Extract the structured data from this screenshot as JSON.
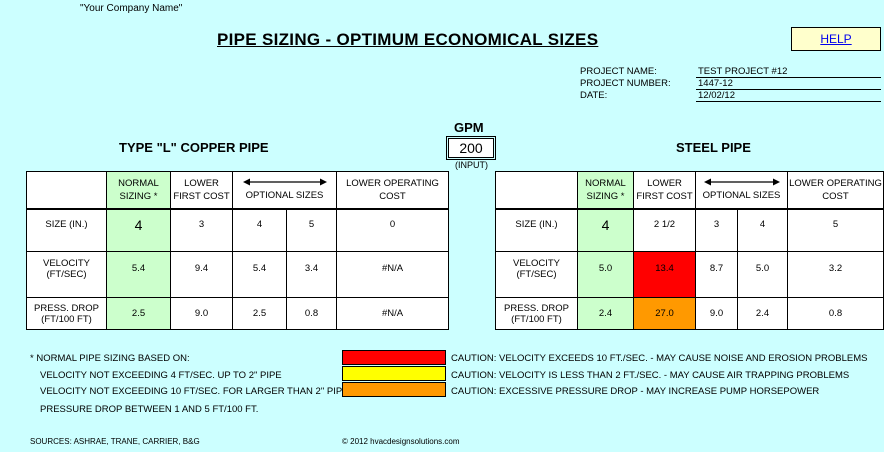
{
  "company_name": "\"Your Company Name\"",
  "title": "PIPE SIZING - OPTIMUM ECONOMICAL SIZES",
  "help_label": "HELP",
  "project": {
    "name_label": "PROJECT NAME:",
    "name_value": "TEST PROJECT #12",
    "number_label": "PROJECT NUMBER:",
    "number_value": "1447-12",
    "date_label": "DATE:",
    "date_value": "12/02/12"
  },
  "gpm": {
    "label": "GPM",
    "value": "200",
    "input_label": "(INPUT)"
  },
  "copper": {
    "title": "TYPE \"L\" COPPER PIPE",
    "headers": {
      "normal": "NORMAL SIZING *",
      "lower_first": "LOWER FIRST COST",
      "optional": "OPTIONAL SIZES",
      "lower_operating": "LOWER OPERATING COST"
    },
    "size_label": "SIZE (IN.)",
    "velocity_label": "VELOCITY (FT/SEC)",
    "pressure_label": "PRESS. DROP (FT/100 FT)",
    "size": [
      "4",
      "3",
      "4",
      "5",
      "0"
    ],
    "velocity": [
      "5.4",
      "9.4",
      "5.4",
      "3.4",
      "#N/A"
    ],
    "pressure": [
      "2.5",
      "9.0",
      "2.5",
      "0.8",
      "#N/A"
    ]
  },
  "steel": {
    "title": "STEEL PIPE",
    "headers": {
      "normal": "NORMAL SIZING *",
      "lower_first": "LOWER FIRST COST",
      "optional": "OPTIONAL SIZES",
      "lower_operating": "LOWER OPERATING COST"
    },
    "size_label": "SIZE (IN.)",
    "velocity_label": "VELOCITY (FT/SEC)",
    "pressure_label": "PRESS. DROP (FT/100 FT)",
    "size": [
      "4",
      "2 1/2",
      "3",
      "4",
      "5"
    ],
    "velocity": [
      "5.0",
      "13.4",
      "8.7",
      "5.0",
      "3.2"
    ],
    "pressure": [
      "2.4",
      "27.0",
      "9.0",
      "2.4",
      "0.8"
    ]
  },
  "notes": [
    "* NORMAL PIPE SIZING BASED ON:",
    "VELOCITY NOT EXCEEDING 4 FT/SEC. UP TO 2\" PIPE",
    "VELOCITY NOT EXCEEDING 10 FT/SEC. FOR LARGER THAN  2\" PIPE",
    "PRESSURE DROP BETWEEN 1 AND 5 FT/100 FT."
  ],
  "cautions": [
    {
      "color": "#ff0000",
      "text": "CAUTION:  VELOCITY EXCEEDS 10 FT./SEC. - MAY CAUSE NOISE AND EROSION PROBLEMS"
    },
    {
      "color": "#ffff00",
      "text": "CAUTION:  VELOCITY IS LESS THAN 2 FT./SEC. - MAY CAUSE AIR TRAPPING PROBLEMS"
    },
    {
      "color": "#ff9900",
      "text": "CAUTION:  EXCESSIVE PRESSURE DROP - MAY INCREASE PUMP HORSEPOWER"
    }
  ],
  "sources": "SOURCES: ASHRAE, TRANE, CARRIER, B&G",
  "copyright": "© 2012 hvacdesignsolutions.com"
}
